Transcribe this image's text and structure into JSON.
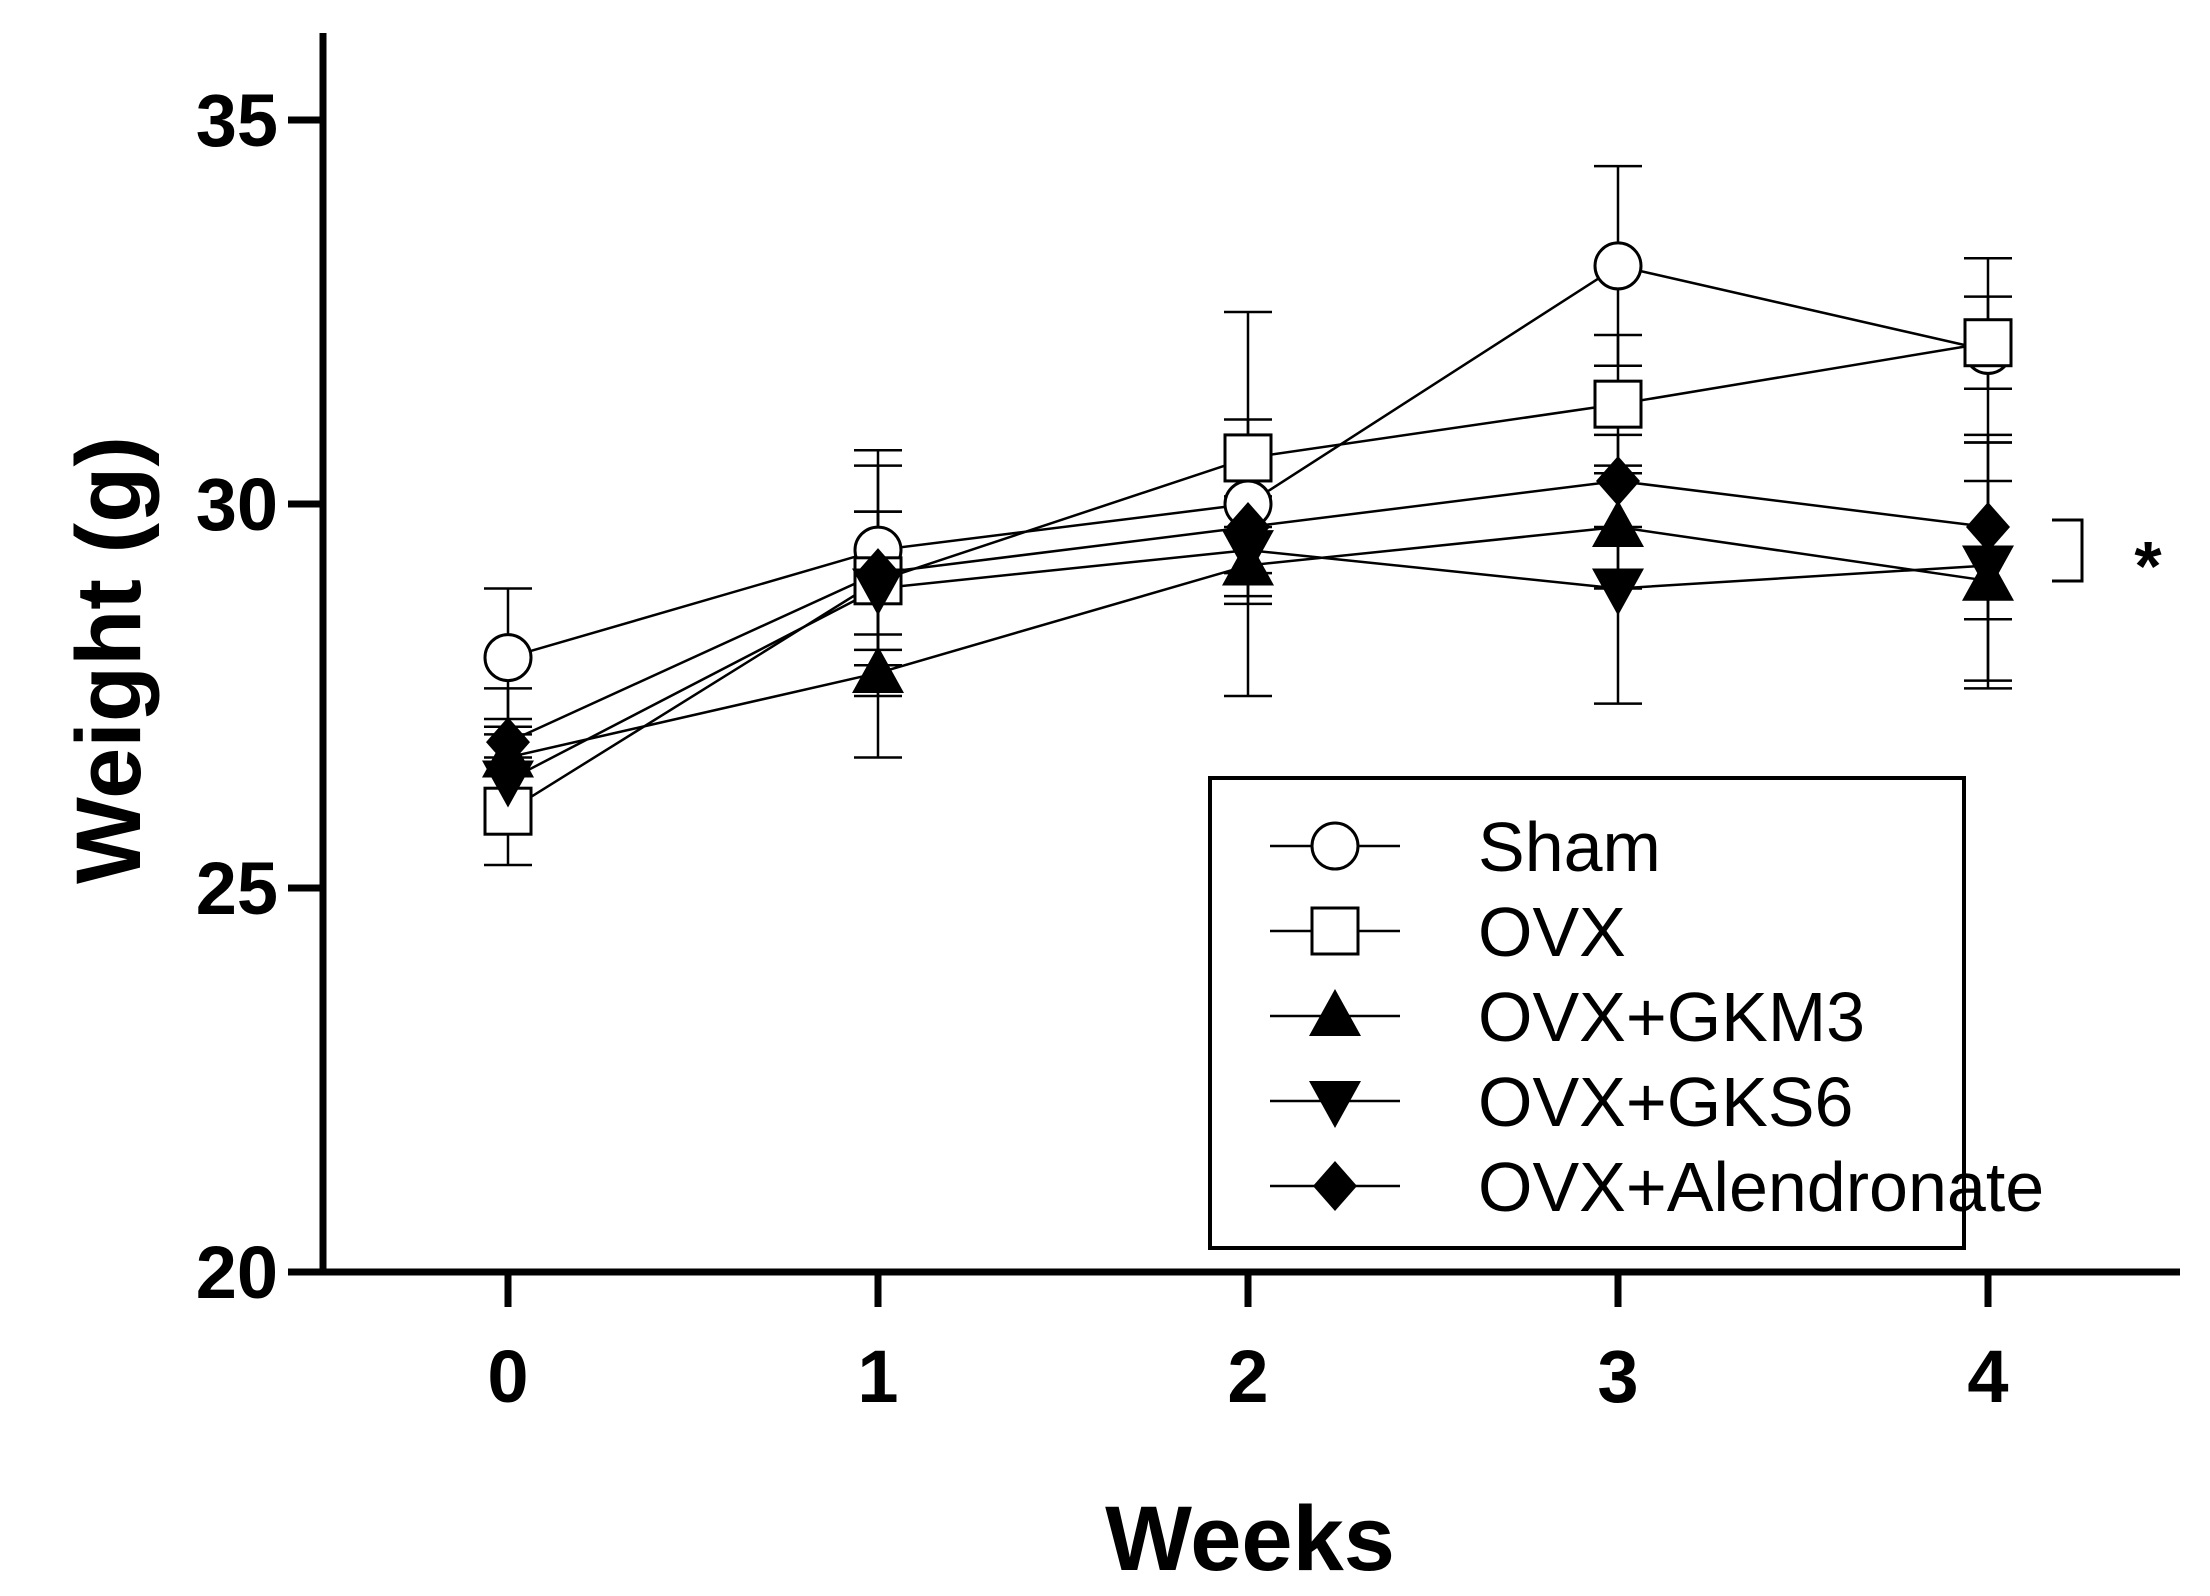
{
  "chart_data": {
    "type": "line",
    "xlabel": "Weeks",
    "ylabel": "Weight (g)",
    "x": [
      0,
      1,
      2,
      3,
      4
    ],
    "xlim": [
      -0.5,
      4.5
    ],
    "ylim": [
      20,
      36
    ],
    "yticks": [
      20,
      25,
      30,
      35
    ],
    "grid": false,
    "legend_position": "bottom-right",
    "series": [
      {
        "name": "Sham",
        "marker": "circle-open",
        "values": [
          28.0,
          29.4,
          30.0,
          33.1,
          32.0
        ],
        "errors": [
          0.9,
          1.3,
          2.5,
          1.3,
          1.2
        ]
      },
      {
        "name": "OVX",
        "marker": "square-open",
        "values": [
          26.0,
          29.0,
          30.6,
          31.3,
          32.1
        ],
        "errors": [
          0.7,
          1.5,
          0.5,
          0.9,
          0.6
        ]
      },
      {
        "name": "OVX+GKM3",
        "marker": "triangle-up",
        "values": [
          26.7,
          27.8,
          29.2,
          29.7,
          29.0
        ],
        "errors": [
          0.5,
          1.1,
          0.5,
          0.8,
          1.3
        ]
      },
      {
        "name": "OVX+GKS6",
        "marker": "triangle-down",
        "values": [
          26.4,
          28.9,
          29.4,
          28.9,
          29.2
        ],
        "errors": [
          0.6,
          1.0,
          0.6,
          1.5,
          1.6
        ]
      },
      {
        "name": "OVX+Alendronate",
        "marker": "diamond-filled",
        "values": [
          26.9,
          29.1,
          29.7,
          30.3,
          29.7
        ],
        "errors": [
          0.7,
          0.8,
          0.6,
          0.6,
          1.2
        ]
      }
    ],
    "annotation": {
      "text": "*"
    }
  }
}
